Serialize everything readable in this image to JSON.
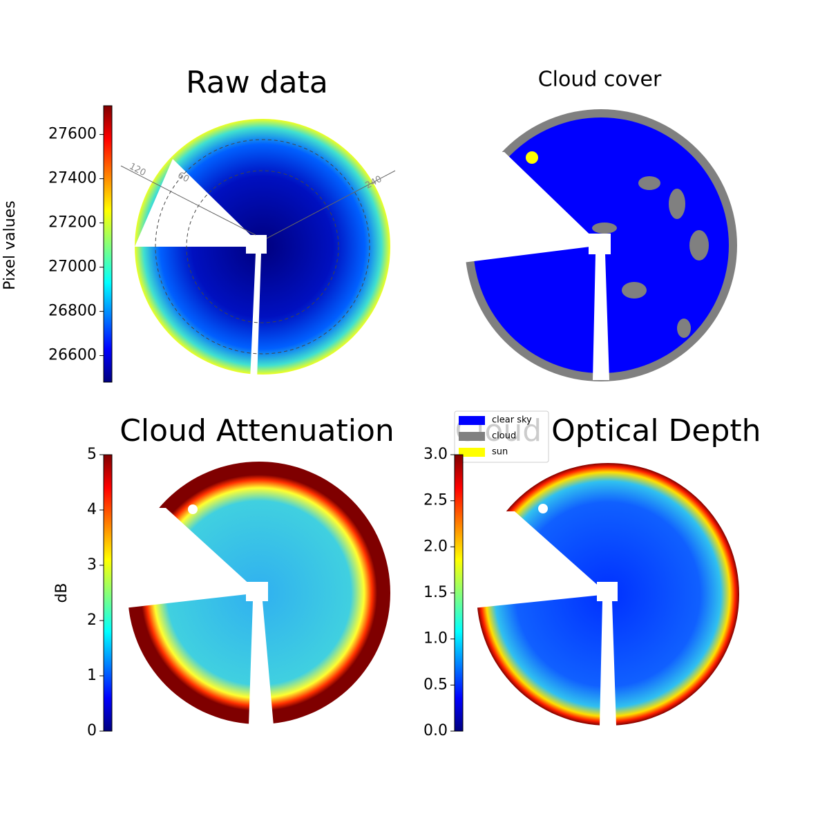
{
  "chart_data": [
    {
      "type": "image",
      "title": "Raw data",
      "colorbar_label": "Pixel values",
      "clim": [
        26480,
        27730
      ],
      "cticks": [
        26600,
        26800,
        27000,
        27200,
        27400,
        27600
      ],
      "annotations": [
        "120",
        "60",
        "240"
      ]
    },
    {
      "type": "image",
      "title": "Cloud cover",
      "series": [
        {
          "name": "clear sky",
          "color": "#0000ff"
        },
        {
          "name": "cloud",
          "color": "#808080"
        },
        {
          "name": "sun",
          "color": "#ffff00"
        }
      ]
    },
    {
      "type": "image",
      "title": "Cloud Attenuation",
      "colorbar_label": "dB",
      "clim": [
        0,
        5
      ],
      "cticks": [
        0,
        1,
        2,
        3,
        4,
        5
      ]
    },
    {
      "type": "image",
      "title": "Cloud Optical Depth",
      "clim": [
        0,
        3
      ],
      "cticks": [
        {
          "value": 0,
          "label": "0.0"
        },
        0.5,
        {
          "value": 1,
          "label": "1.0"
        },
        1.5,
        {
          "value": 2,
          "label": "2.0"
        },
        2.5,
        {
          "value": 3,
          "label": "3.0"
        }
      ]
    }
  ]
}
